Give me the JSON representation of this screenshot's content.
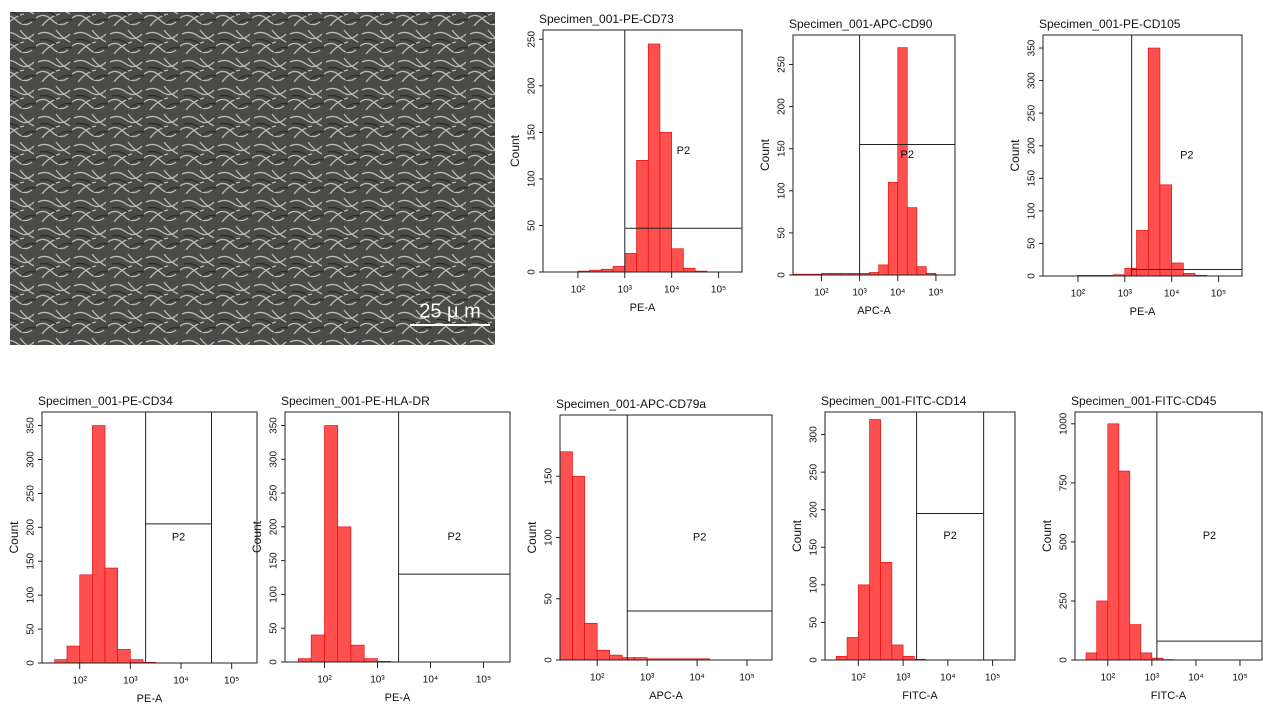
{
  "image": {
    "scale_bar": "25 μ m"
  },
  "chart_data": [
    {
      "type": "histogram",
      "title": "Specimen_001-PE-CD73",
      "xlabel": "PE-A",
      "ylabel": "Count",
      "color": "#ff5050",
      "log_x": true,
      "bins": [
        18,
        32,
        56,
        100,
        178,
        316,
        562,
        1000,
        1778,
        3162,
        5623,
        10000,
        17783,
        31623,
        56234,
        100000,
        177828,
        316228
      ],
      "values": [
        0,
        0,
        0,
        1,
        2,
        3,
        6,
        20,
        120,
        245,
        150,
        25,
        4,
        1,
        0,
        0,
        0
      ],
      "xlim": [
        18,
        316228
      ],
      "ylim": [
        0,
        260
      ],
      "xticks": [
        {
          "value": 100,
          "label": "10²"
        },
        {
          "value": 1000,
          "label": "10³"
        },
        {
          "value": 10000,
          "label": "10⁴"
        },
        {
          "value": 100000,
          "label": "10⁵"
        }
      ],
      "yticks": [
        0,
        50,
        100,
        150,
        200,
        250
      ],
      "gate": {
        "label": "P2",
        "x": [
          1000,
          316228
        ],
        "y": 47
      }
    },
    {
      "type": "histogram",
      "title": "Specimen_001-APC-CD90",
      "xlabel": "APC-A",
      "ylabel": "Count",
      "color": "#ff5050",
      "log_x": true,
      "bins": [
        18,
        32,
        56,
        100,
        178,
        316,
        562,
        1000,
        1778,
        3162,
        5623,
        10000,
        17783,
        31623,
        56234,
        100000,
        177828,
        316228
      ],
      "values": [
        1,
        1,
        1,
        2,
        2,
        2,
        2,
        2,
        3,
        12,
        110,
        270,
        80,
        10,
        2,
        0,
        0
      ],
      "xlim": [
        18,
        316228
      ],
      "ylim": [
        0,
        285
      ],
      "xticks": [
        {
          "value": 100,
          "label": "10²"
        },
        {
          "value": 1000,
          "label": "10³"
        },
        {
          "value": 10000,
          "label": "10⁴"
        },
        {
          "value": 100000,
          "label": "10⁵"
        }
      ],
      "yticks": [
        0,
        50,
        100,
        150,
        200,
        250
      ],
      "gate": {
        "label": "P2",
        "x": [
          1000,
          316228
        ],
        "y": 155
      }
    },
    {
      "type": "histogram",
      "title": "Specimen_001-PE-CD105",
      "xlabel": "PE-A",
      "ylabel": "Count",
      "color": "#ff5050",
      "log_x": true,
      "bins": [
        18,
        32,
        56,
        100,
        178,
        316,
        562,
        1000,
        1778,
        3162,
        5623,
        10000,
        17783,
        31623,
        56234,
        100000,
        177828,
        316228
      ],
      "values": [
        0,
        0,
        0,
        1,
        1,
        1,
        2,
        12,
        70,
        350,
        140,
        20,
        4,
        1,
        0,
        0,
        0
      ],
      "xlim": [
        18,
        316228
      ],
      "ylim": [
        0,
        370
      ],
      "xticks": [
        {
          "value": 100,
          "label": "10²"
        },
        {
          "value": 1000,
          "label": "10³"
        },
        {
          "value": 10000,
          "label": "10⁴"
        },
        {
          "value": 100000,
          "label": "10⁵"
        }
      ],
      "yticks": [
        0,
        50,
        100,
        150,
        200,
        250,
        300,
        350
      ],
      "gate": {
        "label": "P2",
        "x": [
          1400,
          316228
        ],
        "y": 10
      }
    },
    {
      "type": "histogram",
      "title": "Specimen_001-PE-CD34",
      "xlabel": "PE-A",
      "ylabel": "Count",
      "color": "#ff5050",
      "log_x": true,
      "bins": [
        18,
        32,
        56,
        100,
        178,
        316,
        562,
        1000,
        1778,
        3162,
        5623,
        10000,
        17783,
        31623,
        56234,
        100000,
        177828,
        316228
      ],
      "values": [
        0,
        5,
        25,
        130,
        350,
        140,
        20,
        5,
        1,
        0,
        0,
        0,
        0,
        0,
        0,
        0,
        0
      ],
      "xlim": [
        18,
        316228
      ],
      "ylim": [
        0,
        370
      ],
      "xticks": [
        {
          "value": 100,
          "label": "10²"
        },
        {
          "value": 1000,
          "label": "10³"
        },
        {
          "value": 10000,
          "label": "10⁴"
        },
        {
          "value": 100000,
          "label": "10⁵"
        }
      ],
      "yticks": [
        0,
        50,
        100,
        150,
        200,
        250,
        300,
        350
      ],
      "gate": {
        "label": "P2",
        "x": [
          2000,
          40000
        ],
        "y": 205
      }
    },
    {
      "type": "histogram",
      "title": "Specimen_001-PE-HLA-DR",
      "xlabel": "PE-A",
      "ylabel": "Count",
      "color": "#ff5050",
      "log_x": true,
      "bins": [
        18,
        32,
        56,
        100,
        178,
        316,
        562,
        1000,
        1778,
        3162,
        5623,
        10000,
        17783,
        31623,
        56234,
        100000,
        177828,
        316228
      ],
      "values": [
        0,
        5,
        40,
        350,
        200,
        25,
        5,
        1,
        0,
        0,
        0,
        0,
        0,
        0,
        0,
        0,
        0
      ],
      "xlim": [
        18,
        316228
      ],
      "ylim": [
        0,
        370
      ],
      "xticks": [
        {
          "value": 100,
          "label": "10²"
        },
        {
          "value": 1000,
          "label": "10³"
        },
        {
          "value": 10000,
          "label": "10⁴"
        },
        {
          "value": 100000,
          "label": "10⁵"
        }
      ],
      "yticks": [
        0,
        50,
        100,
        150,
        200,
        250,
        300,
        350
      ],
      "gate": {
        "label": "P2",
        "x": [
          2500,
          316228
        ],
        "y": 130
      }
    },
    {
      "type": "histogram",
      "title": "Specimen_001-APC-CD79a",
      "xlabel": "APC-A",
      "ylabel": "Count",
      "color": "#ff5050",
      "log_x": true,
      "bins": [
        18,
        32,
        56,
        100,
        178,
        316,
        562,
        1000,
        1778,
        3162,
        5623,
        10000,
        17783,
        31623,
        56234,
        100000,
        177828,
        316228
      ],
      "values": [
        170,
        150,
        30,
        8,
        4,
        2,
        2,
        1,
        1,
        1,
        1,
        1,
        0,
        0,
        0,
        0,
        0
      ],
      "xlim": [
        18,
        316228
      ],
      "ylim": [
        0,
        200
      ],
      "xticks": [
        {
          "value": 100,
          "label": "10²"
        },
        {
          "value": 1000,
          "label": "10³"
        },
        {
          "value": 10000,
          "label": "10⁴"
        },
        {
          "value": 100000,
          "label": "10⁵"
        }
      ],
      "yticks": [
        0,
        50,
        100,
        150
      ],
      "gate": {
        "label": "P2",
        "x": [
          400,
          316228
        ],
        "y": 40
      }
    },
    {
      "type": "histogram",
      "title": "Specimen_001-FITC-CD14",
      "xlabel": "FITC-A",
      "ylabel": "Count",
      "color": "#ff5050",
      "log_x": true,
      "bins": [
        18,
        32,
        56,
        100,
        178,
        316,
        562,
        1000,
        1778,
        3162,
        5623,
        10000,
        17783,
        31623,
        56234,
        100000,
        177828,
        316228
      ],
      "values": [
        0,
        5,
        30,
        100,
        320,
        130,
        20,
        5,
        1,
        0,
        0,
        0,
        0,
        0,
        0,
        0,
        0
      ],
      "xlim": [
        18,
        316228
      ],
      "ylim": [
        0,
        330
      ],
      "xticks": [
        {
          "value": 100,
          "label": "10²"
        },
        {
          "value": 1000,
          "label": "10³"
        },
        {
          "value": 10000,
          "label": "10⁴"
        },
        {
          "value": 100000,
          "label": "10⁵"
        }
      ],
      "yticks": [
        0,
        50,
        100,
        150,
        200,
        250,
        300
      ],
      "gate": {
        "label": "P2",
        "x": [
          2000,
          63000
        ],
        "y": 195
      }
    },
    {
      "type": "histogram",
      "title": "Specimen_001-FITC-CD45",
      "xlabel": "FITC-A",
      "ylabel": "Count",
      "color": "#ff5050",
      "log_x": true,
      "bins": [
        18,
        32,
        56,
        100,
        178,
        316,
        562,
        1000,
        1778,
        3162,
        5623,
        10000,
        17783,
        31623,
        56234,
        100000,
        177828,
        316228
      ],
      "values": [
        0,
        30,
        250,
        1000,
        800,
        150,
        30,
        8,
        2,
        0,
        0,
        0,
        0,
        0,
        0,
        0,
        0
      ],
      "xlim": [
        18,
        316228
      ],
      "ylim": [
        0,
        1050
      ],
      "xticks": [
        {
          "value": 100,
          "label": "10²"
        },
        {
          "value": 1000,
          "label": "10³"
        },
        {
          "value": 10000,
          "label": "10⁴"
        },
        {
          "value": 100000,
          "label": "10⁵"
        }
      ],
      "yticks": [
        0,
        250,
        500,
        750,
        1000
      ],
      "gate": {
        "label": "P2",
        "x": [
          1300,
          316228
        ],
        "y": 80
      }
    }
  ]
}
